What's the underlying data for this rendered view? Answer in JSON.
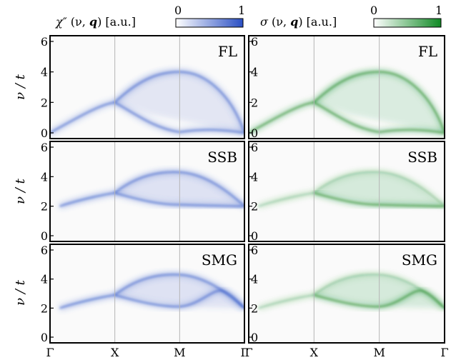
{
  "colorbars": [
    {
      "label_symbol": "χ″",
      "label_args": " (ν, ",
      "label_q": "q",
      "label_close": ")",
      "label_units": " [a.u.]",
      "min": "0",
      "max": "1",
      "color": "#3b5fc9"
    },
    {
      "label_symbol": "σ",
      "label_args": " (ν, ",
      "label_q": "q",
      "label_close": ")",
      "label_units": " [a.u.]",
      "min": "0",
      "max": "1",
      "color": "#1e8c2e"
    }
  ],
  "ylabel": "ν / t",
  "xticks": [
    "Γ",
    "X",
    "M",
    "Γ"
  ],
  "yticks": [
    "0",
    "2",
    "4",
    "6"
  ],
  "rows": [
    "FL",
    "SSB",
    "SMG"
  ],
  "chart_data": {
    "type": "heatmap",
    "description_axes": {
      "x": "momentum path Γ–X–M–Γ",
      "y": "ν / t"
    },
    "xticks": [
      "Γ",
      "X",
      "M",
      "Γ"
    ],
    "ylim": [
      0,
      6
    ],
    "yticks": [
      0,
      2,
      4,
      6
    ],
    "colorbar_range": [
      0,
      1
    ],
    "columns": [
      "χ″ (ν, q) [a.u.]",
      "σ (ν, q) [a.u.]"
    ],
    "rows": [
      "FL",
      "SSB",
      "SMG"
    ],
    "branches": {
      "FL": [
        {
          "x": [
            0,
            1,
            2,
            3
          ],
          "y": [
            0,
            2,
            4,
            0
          ]
        },
        {
          "x": [
            1,
            1.5,
            2,
            2.5,
            3
          ],
          "y": [
            2,
            1.2,
            0,
            1.0,
            0
          ]
        }
      ],
      "SSB": [
        {
          "x": [
            0,
            1,
            2,
            3
          ],
          "y": [
            2,
            2.9,
            4.3,
            2.0
          ]
        },
        {
          "x": [
            1,
            2,
            3
          ],
          "y": [
            2.9,
            2.1,
            2.0
          ]
        }
      ],
      "SMG": [
        {
          "x": [
            0,
            1,
            2,
            3
          ],
          "y": [
            2,
            2.9,
            4.3,
            2.0
          ]
        },
        {
          "x": [
            1,
            2,
            2.5,
            3
          ],
          "y": [
            2.9,
            2.1,
            3.2,
            2.0
          ]
        },
        {
          "x": [
            0,
            3
          ],
          "y": [
            2,
            2
          ]
        }
      ]
    }
  }
}
